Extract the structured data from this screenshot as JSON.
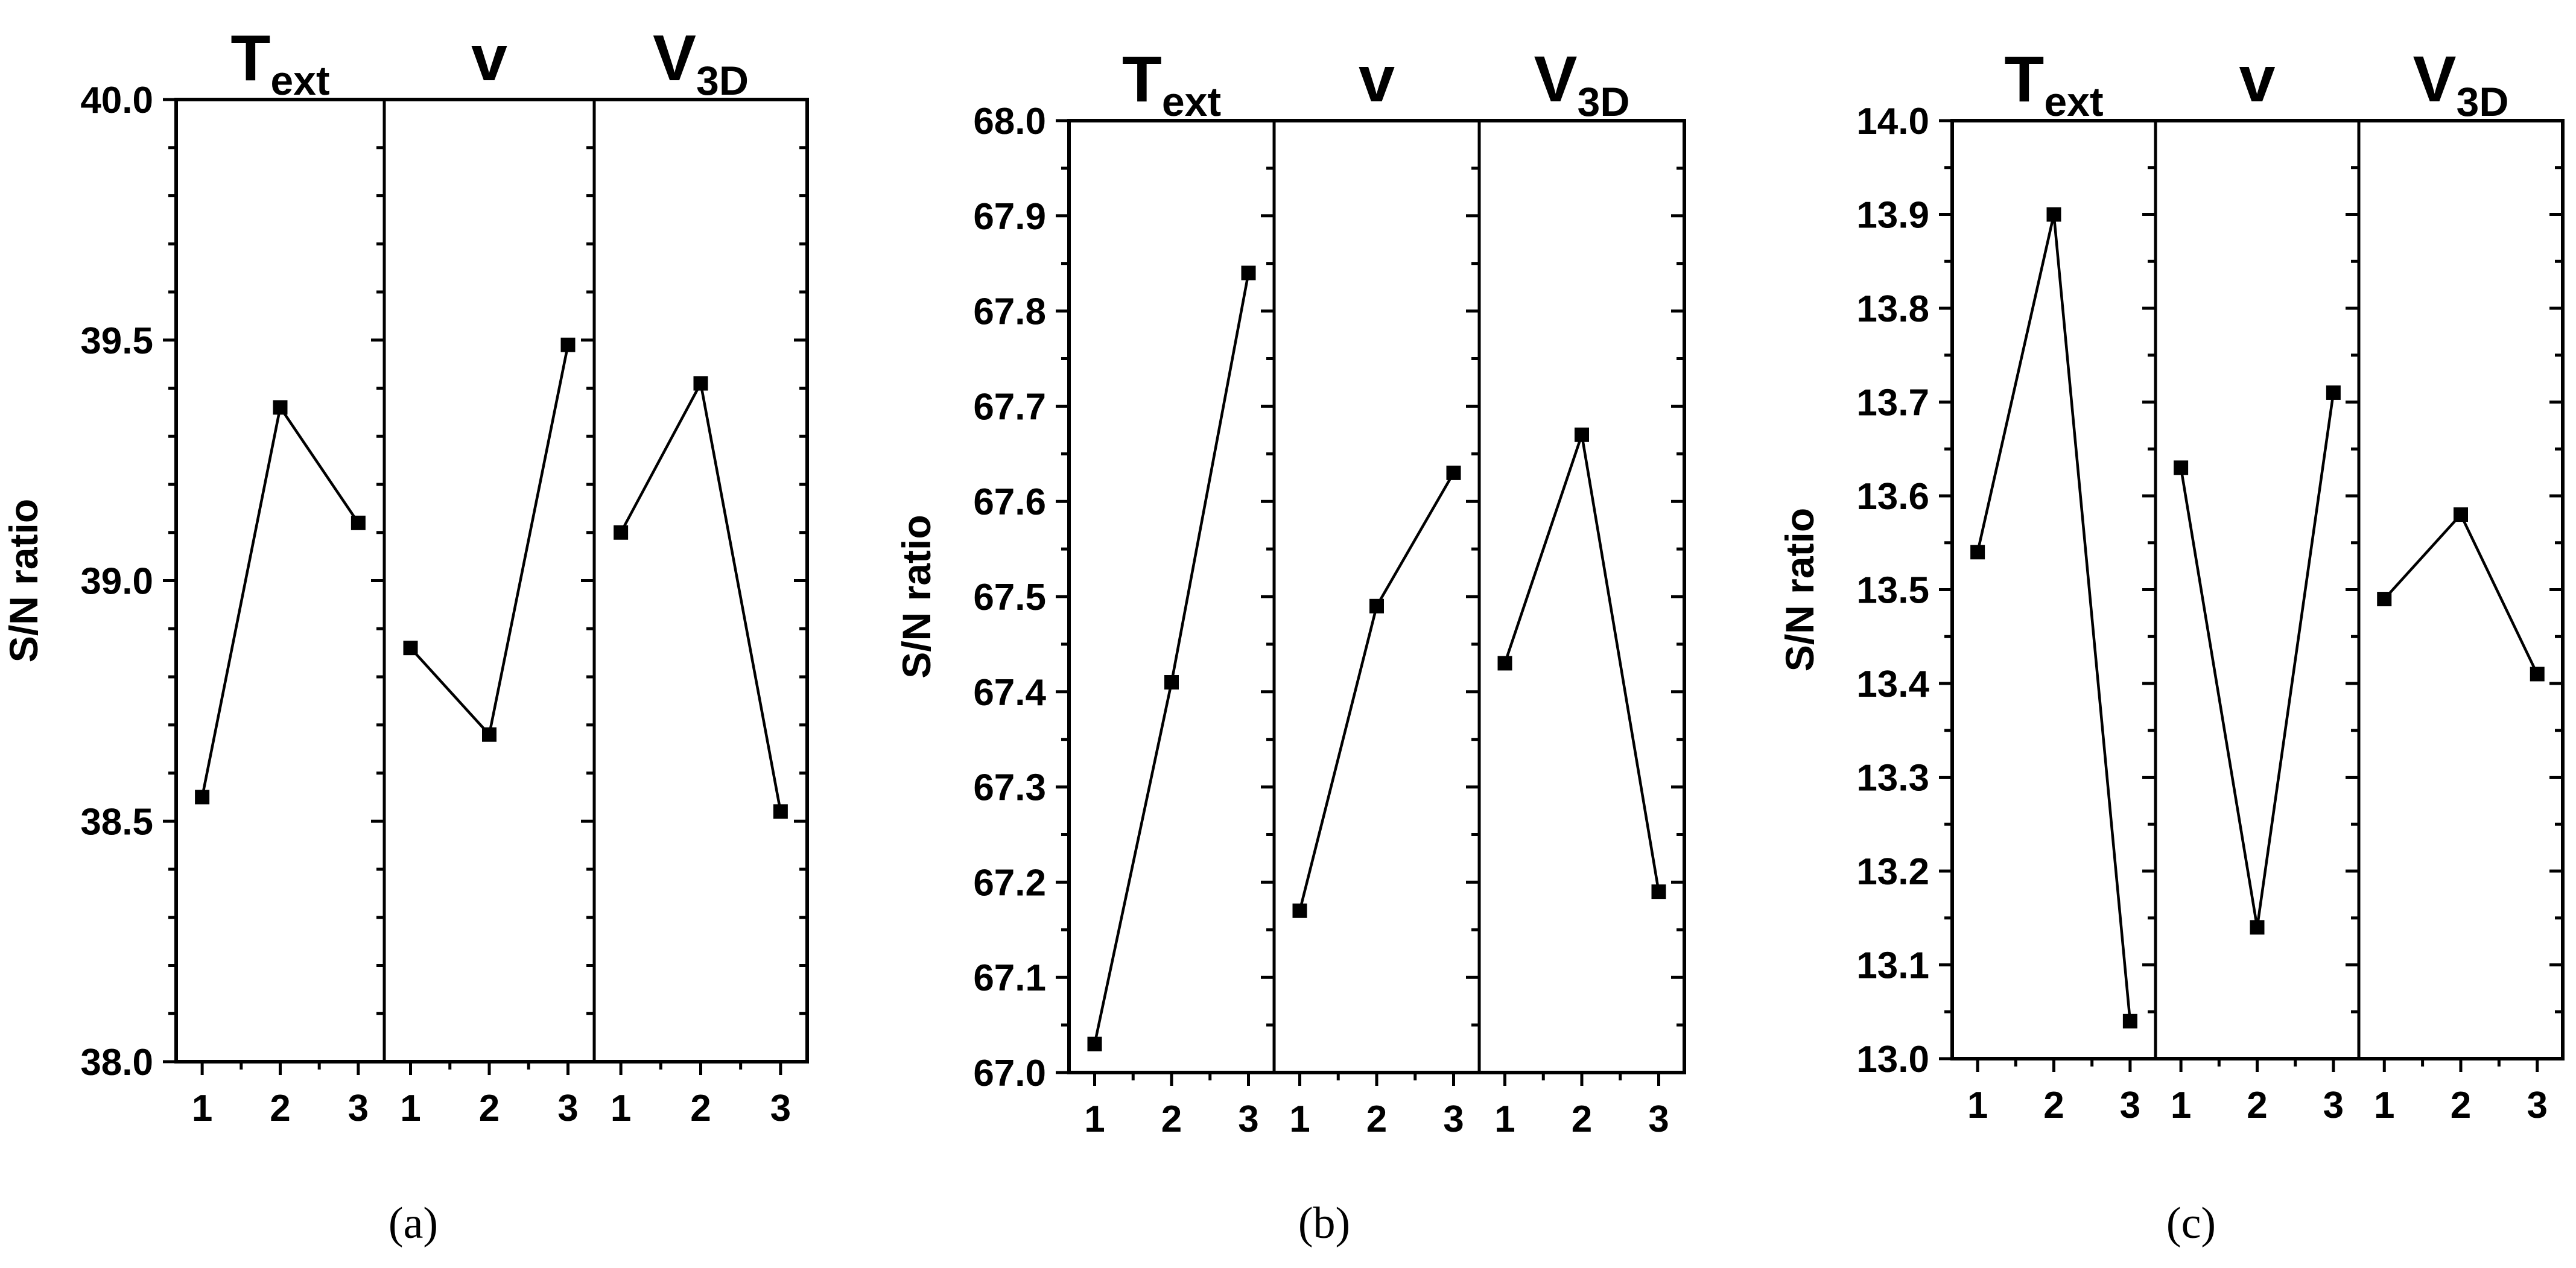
{
  "figure": {
    "captions": [
      "(a)",
      "(b)",
      "(c)"
    ]
  },
  "chart_data": [
    {
      "type": "line",
      "caption": "(a)",
      "ylabel": "S/N ratio",
      "ylim": [
        38.0,
        40.0
      ],
      "yticks": [
        "38.0",
        "38.5",
        "39.0",
        "39.5",
        "40.0"
      ],
      "ytick_values": [
        38.0,
        38.5,
        39.0,
        39.5,
        40.0
      ],
      "yminor_step": 0.1,
      "categories": [
        "1",
        "2",
        "3"
      ],
      "panels": [
        {
          "name": "T",
          "sub": "ext",
          "values": [
            38.55,
            39.36,
            39.12
          ]
        },
        {
          "name": "v",
          "sub": "",
          "values": [
            38.86,
            38.68,
            39.49
          ]
        },
        {
          "name": "V",
          "sub": "3D",
          "values": [
            39.1,
            39.41,
            38.52
          ]
        }
      ]
    },
    {
      "type": "line",
      "caption": "(b)",
      "ylabel": "S/N ratio",
      "ylim": [
        67.0,
        68.0
      ],
      "yticks": [
        "67.0",
        "67.1",
        "67.2",
        "67.3",
        "67.4",
        "67.5",
        "67.6",
        "67.7",
        "67.8",
        "67.9",
        "68.0"
      ],
      "ytick_values": [
        67.0,
        67.1,
        67.2,
        67.3,
        67.4,
        67.5,
        67.6,
        67.7,
        67.8,
        67.9,
        68.0
      ],
      "yminor_step": 0.05,
      "categories": [
        "1",
        "2",
        "3"
      ],
      "panels": [
        {
          "name": "T",
          "sub": "ext",
          "values": [
            67.03,
            67.41,
            67.84
          ]
        },
        {
          "name": "v",
          "sub": "",
          "values": [
            67.17,
            67.49,
            67.63
          ]
        },
        {
          "name": "V",
          "sub": "3D",
          "values": [
            67.43,
            67.67,
            67.19
          ]
        }
      ]
    },
    {
      "type": "line",
      "caption": "(c)",
      "ylabel": "S/N ratio",
      "ylim": [
        13.0,
        14.0
      ],
      "yticks": [
        "13.0",
        "13.1",
        "13.2",
        "13.3",
        "13.4",
        "13.5",
        "13.6",
        "13.7",
        "13.8",
        "13.9",
        "14.0"
      ],
      "ytick_values": [
        13.0,
        13.1,
        13.2,
        13.3,
        13.4,
        13.5,
        13.6,
        13.7,
        13.8,
        13.9,
        14.0
      ],
      "yminor_step": 0.05,
      "categories": [
        "1",
        "2",
        "3"
      ],
      "panels": [
        {
          "name": "T",
          "sub": "ext",
          "values": [
            13.54,
            13.9,
            13.04
          ]
        },
        {
          "name": "v",
          "sub": "",
          "values": [
            13.63,
            13.14,
            13.71
          ]
        },
        {
          "name": "V",
          "sub": "3D",
          "values": [
            13.49,
            13.58,
            13.41
          ]
        }
      ]
    }
  ]
}
